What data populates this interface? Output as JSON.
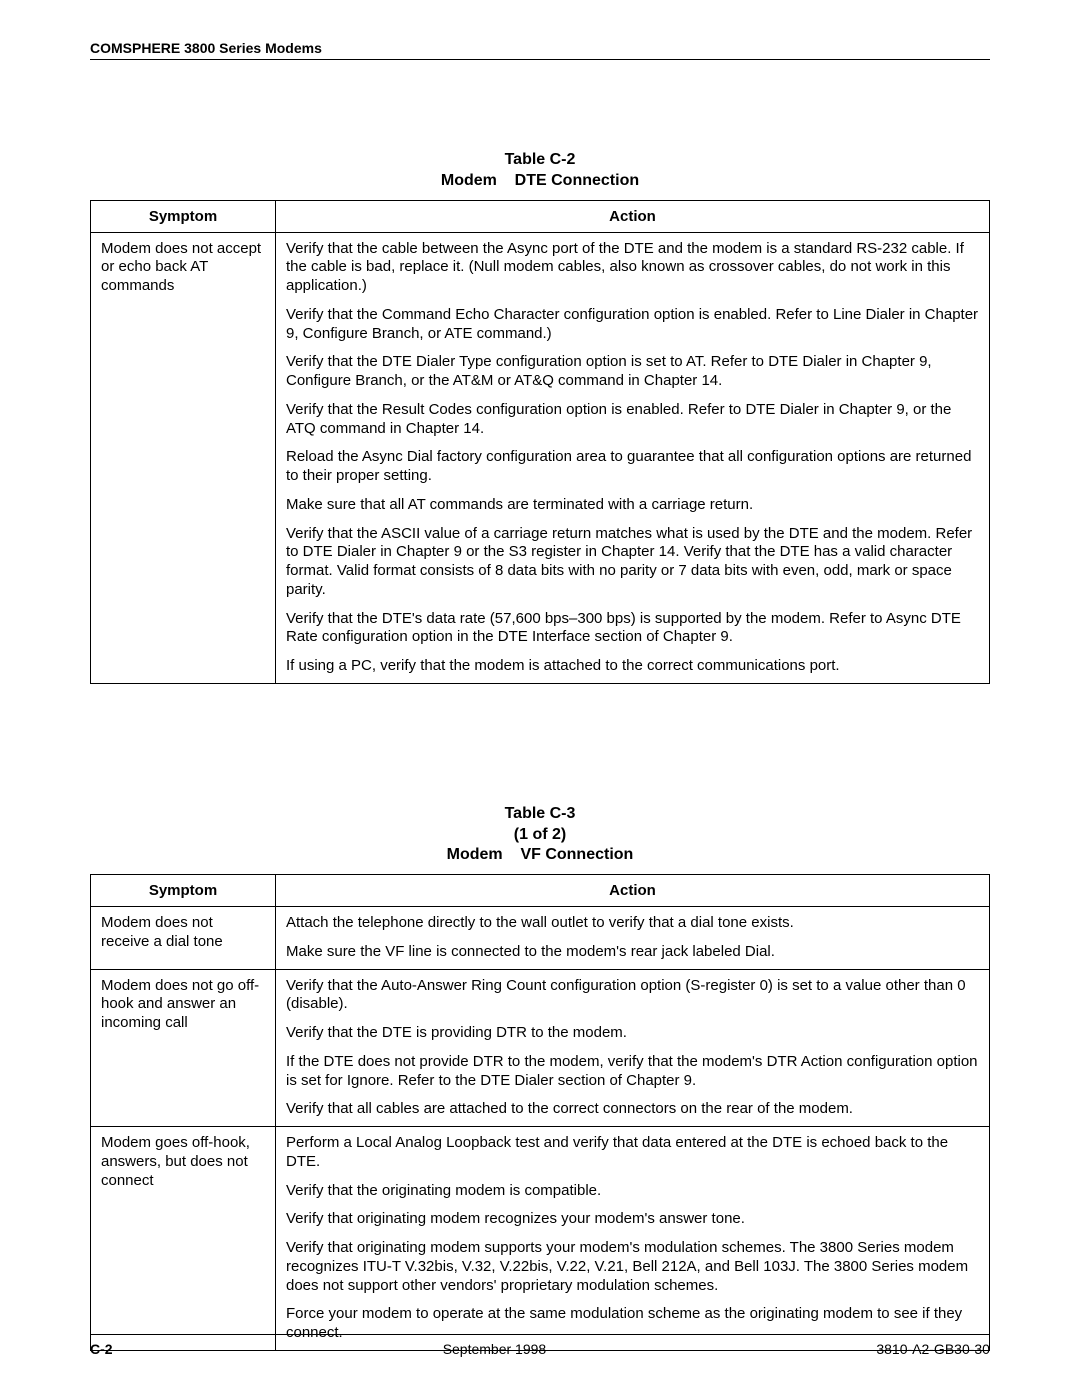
{
  "header": {
    "title": "COMSPHERE 3800 Series Modems"
  },
  "table1": {
    "title_line1": "Table C-2",
    "title_line2": "Modem    DTE Connection",
    "heads": {
      "symptom": "Symptom",
      "action": "Action"
    },
    "rows": [
      {
        "symptom": "Modem does not accept or echo back AT commands",
        "actions": [
          "Verify that the cable between the Async port of the DTE and the modem is a standard RS-232 cable. If the cable is bad, replace it. (Null modem cables, also known as crossover cables, do not work in this application.)",
          "Verify that the Command Echo Character configuration option is enabled. Refer to Line Dialer in Chapter 9, Configure Branch, or ATE command.)",
          "Verify that the DTE Dialer Type configuration option is set to AT. Refer to DTE Dialer in Chapter 9, Configure Branch, or the AT&M or AT&Q command in Chapter 14.",
          "Verify that the Result Codes configuration option is enabled. Refer to DTE Dialer in Chapter 9, or the ATQ command in Chapter 14.",
          "Reload the Async Dial factory configuration area to guarantee that all configuration options are returned to their proper setting.",
          "Make sure that all AT commands are terminated with a carriage return.",
          "Verify that the ASCII value of a carriage return matches what is used by the DTE and the modem. Refer to DTE Dialer in Chapter 9 or the S3 register in Chapter 14. Verify that the DTE has a valid character format. Valid format consists of 8 data bits with no parity or 7 data bits with even, odd, mark or space parity.",
          "Verify that the DTE's data rate (57,600 bps–300 bps) is supported by the modem. Refer to Async DTE Rate configuration option in the DTE Interface section of Chapter 9.",
          "If using a PC, verify that the modem is attached to the correct communications port."
        ]
      }
    ]
  },
  "table2": {
    "title_line1": "Table C-3",
    "title_line2": "(1 of 2)",
    "title_line3": "Modem    VF Connection",
    "heads": {
      "symptom": "Symptom",
      "action": "Action"
    },
    "rows": [
      {
        "symptom": "Modem does not receive a dial tone",
        "actions": [
          "Attach the telephone directly to the wall outlet to verify that a dial tone exists.",
          "Make sure the VF line is connected to the modem's rear jack labeled Dial."
        ]
      },
      {
        "symptom": "Modem does not go off-hook and answer an incoming call",
        "actions": [
          "Verify that the Auto-Answer Ring Count configuration option (S-register 0) is set to a value other than 0 (disable).",
          "Verify that the DTE is providing DTR to the modem.",
          "If the DTE does not provide DTR to the modem, verify that the modem's DTR Action configuration option is set for Ignore. Refer to the DTE Dialer section of Chapter 9.",
          "Verify that all cables are attached to the correct connectors on the rear of the modem."
        ]
      },
      {
        "symptom": "Modem goes off-hook, answers, but does not connect",
        "actions": [
          "Perform a Local Analog Loopback test and verify that data entered at the DTE is echoed back to the DTE.",
          "Verify that the originating modem is compatible.",
          "Verify that originating modem recognizes your modem's answer tone.",
          "Verify that originating modem supports your modem's modulation schemes. The 3800 Series modem recognizes ITU-T V.32bis, V.32, V.22bis, V.22, V.21, Bell 212A, and Bell 103J. The 3800 Series modem does not support other vendors' proprietary modulation schemes.",
          "Force your modem to operate at the same modulation scheme as the originating modem to see if they connect."
        ]
      }
    ]
  },
  "footer": {
    "page": "C-2",
    "date": "September 1998",
    "doc": "3810-A2-GB30-30"
  }
}
